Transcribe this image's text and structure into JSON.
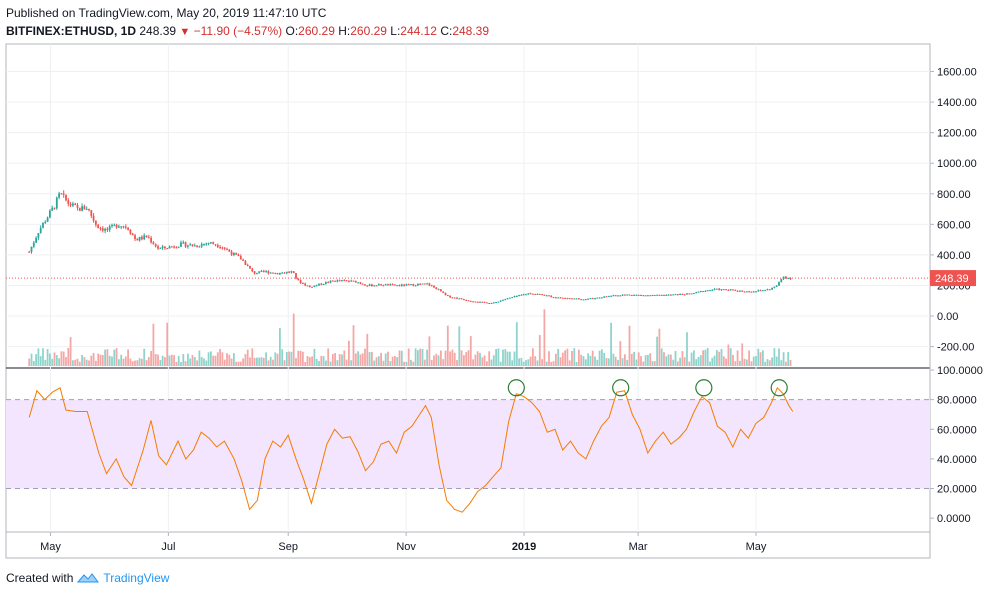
{
  "header": {
    "published": "Published on TradingView.com, May 20, 2019 11:47:10 UTC",
    "symbol": "BITFINEX:ETHUSD, 1D",
    "last": "248.39",
    "change": "−11.90 (−4.57%)",
    "o_label": "O:",
    "open": "260.29",
    "h_label": "H:",
    "high": "260.29",
    "l_label": "L:",
    "low": "244.12",
    "c_label": "C:",
    "close": "248.39"
  },
  "footer": {
    "created_with": "Created with",
    "brand": "TradingView"
  },
  "colors": {
    "up": "#26a69a",
    "down": "#ef5350",
    "rsi_line": "#f57c00",
    "rsi_band": "#f3e5fd",
    "circle": "#2e7d32",
    "price_tag": "#ef5350"
  },
  "chart_data": [
    {
      "type": "candlestick",
      "symbol": "BITFINEX:ETHUSD",
      "interval": "1D",
      "x_ticks": [
        "May",
        "Jul",
        "Sep",
        "Nov",
        "2019",
        "Mar",
        "May"
      ],
      "y_ticks": [
        "1600.00",
        "1400.00",
        "1200.00",
        "1000.00",
        "800.00",
        "600.00",
        "400.00",
        "200.00",
        "0.00",
        "-200.00"
      ],
      "ylim": [
        -340,
        1780
      ],
      "last_price_label": "248.39",
      "last_price": 248.39,
      "price_path": [
        [
          "2018-04-20",
          420
        ],
        [
          "2018-04-25",
          560
        ],
        [
          "2018-04-29",
          640
        ],
        [
          "2018-05-03",
          720
        ],
        [
          "2018-05-06",
          800
        ],
        [
          "2018-05-10",
          740
        ],
        [
          "2018-05-15",
          700
        ],
        [
          "2018-05-20",
          710
        ],
        [
          "2018-05-25",
          590
        ],
        [
          "2018-05-30",
          560
        ],
        [
          "2018-06-05",
          600
        ],
        [
          "2018-06-10",
          580
        ],
        [
          "2018-06-14",
          500
        ],
        [
          "2018-06-20",
          520
        ],
        [
          "2018-06-26",
          440
        ],
        [
          "2018-07-01",
          450
        ],
        [
          "2018-07-08",
          470
        ],
        [
          "2018-07-15",
          460
        ],
        [
          "2018-07-22",
          480
        ],
        [
          "2018-07-28",
          460
        ],
        [
          "2018-08-03",
          410
        ],
        [
          "2018-08-08",
          370
        ],
        [
          "2018-08-14",
          280
        ],
        [
          "2018-08-20",
          290
        ],
        [
          "2018-08-26",
          280
        ],
        [
          "2018-09-03",
          290
        ],
        [
          "2018-09-06",
          230
        ],
        [
          "2018-09-12",
          190
        ],
        [
          "2018-09-18",
          210
        ],
        [
          "2018-09-24",
          230
        ],
        [
          "2018-09-30",
          230
        ],
        [
          "2018-10-06",
          225
        ],
        [
          "2018-10-12",
          200
        ],
        [
          "2018-10-20",
          205
        ],
        [
          "2018-10-28",
          200
        ],
        [
          "2018-11-05",
          205
        ],
        [
          "2018-11-12",
          210
        ],
        [
          "2018-11-18",
          170
        ],
        [
          "2018-11-22",
          130
        ],
        [
          "2018-11-28",
          115
        ],
        [
          "2018-12-04",
          100
        ],
        [
          "2018-12-10",
          90
        ],
        [
          "2018-12-16",
          85
        ],
        [
          "2018-12-22",
          110
        ],
        [
          "2018-12-28",
          130
        ],
        [
          "2019-01-04",
          150
        ],
        [
          "2019-01-10",
          140
        ],
        [
          "2019-01-16",
          125
        ],
        [
          "2019-01-24",
          115
        ],
        [
          "2019-02-01",
          110
        ],
        [
          "2019-02-08",
          120
        ],
        [
          "2019-02-16",
          135
        ],
        [
          "2019-02-24",
          140
        ],
        [
          "2019-03-04",
          135
        ],
        [
          "2019-03-12",
          135
        ],
        [
          "2019-03-20",
          140
        ],
        [
          "2019-03-28",
          145
        ],
        [
          "2019-04-04",
          165
        ],
        [
          "2019-04-10",
          175
        ],
        [
          "2019-04-18",
          170
        ],
        [
          "2019-04-26",
          160
        ],
        [
          "2019-05-02",
          165
        ],
        [
          "2019-05-08",
          175
        ],
        [
          "2019-05-12",
          200
        ],
        [
          "2019-05-15",
          260
        ],
        [
          "2019-05-17",
          250
        ],
        [
          "2019-05-20",
          248
        ]
      ]
    },
    {
      "type": "bar",
      "name": "volume",
      "values": "relative volume bars aligned to candles; spikes near Aug, Sep, Nov–Dec, Jan, Mar, Apr"
    },
    {
      "type": "line",
      "name": "RSI",
      "y_ticks": [
        "100.0000",
        "80.0000",
        "60.0000",
        "40.0000",
        "20.0000",
        "0.0000"
      ],
      "ylim": [
        -8,
        100
      ],
      "bands": [
        20,
        80
      ],
      "points": [
        [
          "2018-04-20",
          68
        ],
        [
          "2018-04-24",
          86
        ],
        [
          "2018-04-28",
          80
        ],
        [
          "2018-05-02",
          85
        ],
        [
          "2018-05-06",
          88
        ],
        [
          "2018-05-09",
          73
        ],
        [
          "2018-05-14",
          72
        ],
        [
          "2018-05-20",
          72
        ],
        [
          "2018-05-26",
          44
        ],
        [
          "2018-05-30",
          30
        ],
        [
          "2018-06-04",
          40
        ],
        [
          "2018-06-08",
          28
        ],
        [
          "2018-06-12",
          22
        ],
        [
          "2018-06-18",
          46
        ],
        [
          "2018-06-22",
          66
        ],
        [
          "2018-06-26",
          42
        ],
        [
          "2018-06-30",
          36
        ],
        [
          "2018-07-06",
          52
        ],
        [
          "2018-07-10",
          40
        ],
        [
          "2018-07-14",
          46
        ],
        [
          "2018-07-18",
          58
        ],
        [
          "2018-07-22",
          54
        ],
        [
          "2018-07-26",
          48
        ],
        [
          "2018-07-30",
          52
        ],
        [
          "2018-08-04",
          40
        ],
        [
          "2018-08-08",
          25
        ],
        [
          "2018-08-12",
          6
        ],
        [
          "2018-08-16",
          12
        ],
        [
          "2018-08-20",
          40
        ],
        [
          "2018-08-24",
          52
        ],
        [
          "2018-08-28",
          48
        ],
        [
          "2018-09-01",
          56
        ],
        [
          "2018-09-05",
          40
        ],
        [
          "2018-09-09",
          26
        ],
        [
          "2018-09-13",
          10
        ],
        [
          "2018-09-17",
          30
        ],
        [
          "2018-09-21",
          50
        ],
        [
          "2018-09-25",
          60
        ],
        [
          "2018-09-29",
          54
        ],
        [
          "2018-10-03",
          55
        ],
        [
          "2018-10-07",
          45
        ],
        [
          "2018-10-11",
          32
        ],
        [
          "2018-10-15",
          38
        ],
        [
          "2018-10-19",
          50
        ],
        [
          "2018-10-23",
          52
        ],
        [
          "2018-10-27",
          44
        ],
        [
          "2018-10-31",
          58
        ],
        [
          "2018-11-04",
          62
        ],
        [
          "2018-11-08",
          70
        ],
        [
          "2018-11-11",
          76
        ],
        [
          "2018-11-14",
          68
        ],
        [
          "2018-11-18",
          36
        ],
        [
          "2018-11-22",
          12
        ],
        [
          "2018-11-26",
          6
        ],
        [
          "2018-11-30",
          4
        ],
        [
          "2018-12-04",
          10
        ],
        [
          "2018-12-08",
          18
        ],
        [
          "2018-12-12",
          22
        ],
        [
          "2018-12-16",
          28
        ],
        [
          "2018-12-20",
          34
        ],
        [
          "2018-12-24",
          65
        ],
        [
          "2018-12-28",
          84
        ],
        [
          "2019-01-01",
          82
        ],
        [
          "2019-01-05",
          78
        ],
        [
          "2019-01-09",
          72
        ],
        [
          "2019-01-13",
          58
        ],
        [
          "2019-01-17",
          60
        ],
        [
          "2019-01-21",
          46
        ],
        [
          "2019-01-25",
          52
        ],
        [
          "2019-01-29",
          44
        ],
        [
          "2019-02-02",
          40
        ],
        [
          "2019-02-06",
          52
        ],
        [
          "2019-02-10",
          62
        ],
        [
          "2019-02-14",
          68
        ],
        [
          "2019-02-18",
          85
        ],
        [
          "2019-02-22",
          86
        ],
        [
          "2019-02-26",
          70
        ],
        [
          "2019-03-02",
          60
        ],
        [
          "2019-03-06",
          44
        ],
        [
          "2019-03-10",
          52
        ],
        [
          "2019-03-14",
          58
        ],
        [
          "2019-03-18",
          50
        ],
        [
          "2019-03-22",
          54
        ],
        [
          "2019-03-26",
          60
        ],
        [
          "2019-03-30",
          72
        ],
        [
          "2019-04-03",
          82
        ],
        [
          "2019-04-07",
          78
        ],
        [
          "2019-04-11",
          62
        ],
        [
          "2019-04-15",
          58
        ],
        [
          "2019-04-19",
          48
        ],
        [
          "2019-04-23",
          60
        ],
        [
          "2019-04-27",
          54
        ],
        [
          "2019-05-01",
          64
        ],
        [
          "2019-05-05",
          68
        ],
        [
          "2019-05-09",
          78
        ],
        [
          "2019-05-12",
          88
        ],
        [
          "2019-05-15",
          84
        ],
        [
          "2019-05-18",
          76
        ],
        [
          "2019-05-20",
          72
        ]
      ],
      "highlighted_peaks": [
        "2018-12-28",
        "2019-02-20",
        "2019-04-04",
        "2019-05-13"
      ]
    }
  ]
}
